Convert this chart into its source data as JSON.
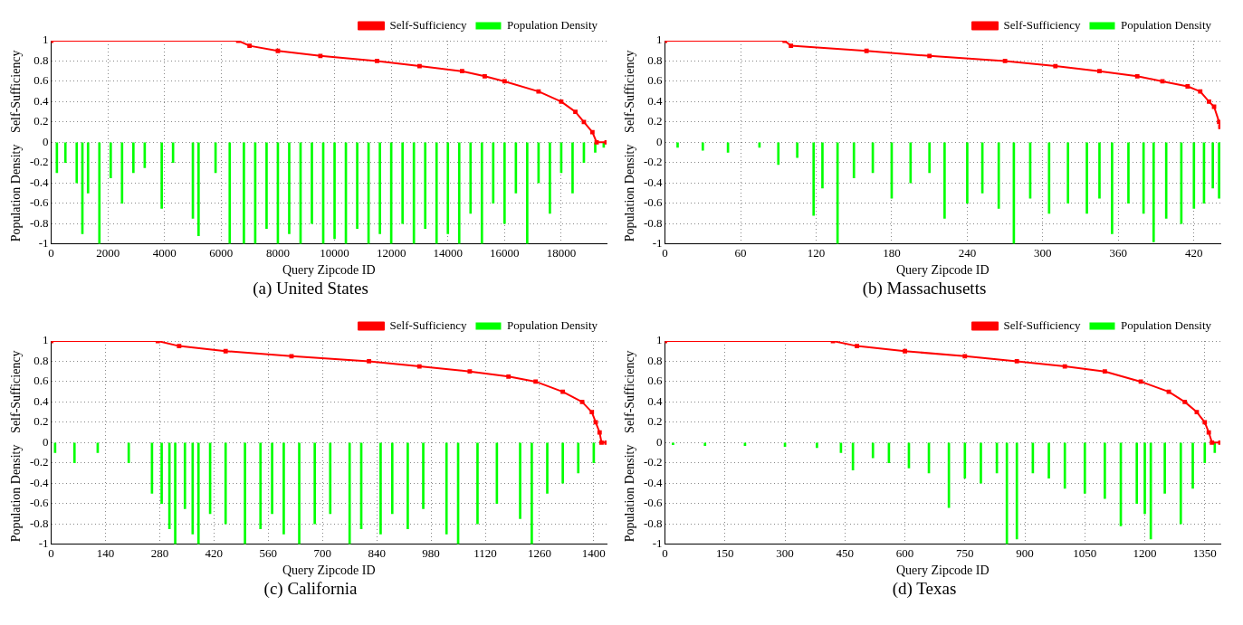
{
  "chart_data": [
    {
      "type": "line",
      "title": "(a) United States",
      "xlabel": "Query Zipcode ID",
      "ylabel": "Self-Sufficiency",
      "annotations": [
        "Population Density"
      ],
      "xlim": [
        0,
        19600
      ],
      "xticks": [
        0,
        2000,
        4000,
        6000,
        8000,
        10000,
        12000,
        14000,
        16000,
        18000
      ],
      "ylim": [
        -1,
        1
      ],
      "yticks": [
        -1,
        -0.8,
        -0.6,
        -0.4,
        -0.2,
        0,
        0.2,
        0.4,
        0.6,
        0.8,
        1
      ],
      "grid": true,
      "legend": "top right",
      "series": [
        {
          "name": "Self-Sufficiency",
          "color": "#ff0000",
          "marker": "square",
          "x": [
            0,
            6600,
            7000,
            8000,
            9500,
            11500,
            13000,
            14500,
            15300,
            16000,
            17200,
            18000,
            18500,
            18800,
            19100,
            19250,
            19600
          ],
          "values": [
            1,
            1,
            0.95,
            0.9,
            0.85,
            0.8,
            0.75,
            0.7,
            0.65,
            0.6,
            0.5,
            0.4,
            0.3,
            0.2,
            0.1,
            0,
            0
          ]
        },
        {
          "name": "Population Density",
          "type": "bar",
          "color": "#00ff00",
          "x": [
            200,
            500,
            900,
            1100,
            1300,
            1700,
            2100,
            2500,
            2900,
            3300,
            3900,
            4300,
            5000,
            5200,
            5800,
            6300,
            6800,
            7200,
            7600,
            8000,
            8400,
            8800,
            9200,
            9600,
            10000,
            10400,
            10800,
            11200,
            11600,
            12000,
            12400,
            12800,
            13200,
            13600,
            14000,
            14400,
            14800,
            15200,
            15600,
            16000,
            16400,
            16800,
            17200,
            17600,
            18000,
            18400,
            18800,
            19200,
            19500
          ],
          "values": [
            -0.3,
            -0.2,
            -0.4,
            -0.9,
            -0.5,
            -1,
            -0.35,
            -0.6,
            -0.3,
            -0.25,
            -0.65,
            -0.2,
            -0.75,
            -0.92,
            -0.3,
            -1,
            -1,
            -1,
            -0.85,
            -1,
            -0.9,
            -1,
            -0.8,
            -1,
            -0.95,
            -1,
            -0.85,
            -1,
            -0.9,
            -1,
            -0.8,
            -1,
            -0.85,
            -1,
            -0.9,
            -1,
            -0.7,
            -1,
            -0.6,
            -0.8,
            -0.5,
            -1,
            -0.4,
            -0.7,
            -0.3,
            -0.5,
            -0.2,
            -0.1,
            -0.05
          ]
        }
      ]
    },
    {
      "type": "line",
      "title": "(b) Massachusetts",
      "xlabel": "Query Zipcode ID",
      "ylabel": "Self-Sufficiency",
      "annotations": [
        "Population Density"
      ],
      "xlim": [
        0,
        441
      ],
      "xticks": [
        0,
        60,
        120,
        180,
        240,
        300,
        360,
        420
      ],
      "ylim": [
        -1,
        1
      ],
      "yticks": [
        -1,
        -0.8,
        -0.6,
        -0.4,
        -0.2,
        0,
        0.2,
        0.4,
        0.6,
        0.8,
        1
      ],
      "grid": true,
      "legend": "top right",
      "series": [
        {
          "name": "Self-Sufficiency",
          "color": "#ff0000",
          "marker": "square",
          "x": [
            0,
            95,
            100,
            160,
            210,
            270,
            310,
            345,
            375,
            395,
            415,
            425,
            432,
            436,
            440,
            441
          ],
          "values": [
            1,
            1,
            0.95,
            0.9,
            0.85,
            0.8,
            0.75,
            0.7,
            0.65,
            0.6,
            0.55,
            0.5,
            0.4,
            0.35,
            0.2,
            0.15
          ]
        },
        {
          "name": "Population Density",
          "type": "bar",
          "color": "#00ff00",
          "x": [
            10,
            30,
            50,
            75,
            90,
            105,
            118,
            125,
            137,
            150,
            165,
            180,
            195,
            210,
            222,
            240,
            252,
            265,
            277,
            290,
            305,
            320,
            335,
            345,
            355,
            368,
            380,
            388,
            398,
            410,
            420,
            428,
            435,
            440
          ],
          "values": [
            -0.05,
            -0.08,
            -0.1,
            -0.05,
            -0.22,
            -0.15,
            -0.72,
            -0.45,
            -1,
            -0.35,
            -0.3,
            -0.55,
            -0.4,
            -0.3,
            -0.75,
            -0.6,
            -0.5,
            -0.65,
            -1,
            -0.55,
            -0.7,
            -0.6,
            -0.7,
            -0.55,
            -0.9,
            -0.6,
            -0.7,
            -0.98,
            -0.75,
            -0.8,
            -0.65,
            -0.6,
            -0.45,
            -0.55
          ]
        }
      ]
    },
    {
      "type": "line",
      "title": "(c) California",
      "xlabel": "Query Zipcode ID",
      "ylabel": "Self-Sufficiency",
      "annotations": [
        "Population Density"
      ],
      "xlim": [
        0,
        1433
      ],
      "xticks": [
        0,
        140,
        280,
        420,
        560,
        700,
        840,
        980,
        1120,
        1260,
        1400
      ],
      "ylim": [
        -1,
        1
      ],
      "yticks": [
        -1,
        -0.8,
        -0.6,
        -0.4,
        -0.2,
        0,
        0.2,
        0.4,
        0.6,
        0.8,
        1
      ],
      "grid": true,
      "legend": "top right",
      "series": [
        {
          "name": "Self-Sufficiency",
          "color": "#ff0000",
          "marker": "square",
          "x": [
            0,
            275,
            330,
            450,
            620,
            820,
            950,
            1080,
            1180,
            1250,
            1320,
            1370,
            1395,
            1405,
            1415,
            1420,
            1433
          ],
          "values": [
            1,
            1,
            0.95,
            0.9,
            0.85,
            0.8,
            0.75,
            0.7,
            0.65,
            0.6,
            0.5,
            0.4,
            0.3,
            0.2,
            0.1,
            0,
            0
          ]
        },
        {
          "name": "Population Density",
          "type": "bar",
          "color": "#00ff00",
          "x": [
            10,
            60,
            120,
            200,
            260,
            285,
            305,
            320,
            345,
            365,
            380,
            410,
            450,
            500,
            540,
            570,
            600,
            640,
            680,
            720,
            770,
            800,
            850,
            880,
            920,
            960,
            1020,
            1050,
            1100,
            1150,
            1210,
            1240,
            1280,
            1320,
            1360,
            1400
          ],
          "values": [
            -0.1,
            -0.2,
            -0.1,
            -0.2,
            -0.5,
            -0.6,
            -0.85,
            -1,
            -0.65,
            -0.9,
            -1,
            -0.7,
            -0.8,
            -1,
            -0.85,
            -0.7,
            -0.9,
            -1,
            -0.8,
            -0.7,
            -1,
            -0.85,
            -0.9,
            -0.7,
            -0.85,
            -0.65,
            -0.9,
            -1,
            -0.8,
            -0.6,
            -0.75,
            -1,
            -0.5,
            -0.4,
            -0.3,
            -0.2
          ]
        }
      ]
    },
    {
      "type": "line",
      "title": "(d) Texas",
      "xlabel": "Query Zipcode ID",
      "ylabel": "Self-Sufficiency",
      "annotations": [
        "Population Density"
      ],
      "xlim": [
        0,
        1389
      ],
      "xticks": [
        0,
        150,
        300,
        450,
        600,
        750,
        900,
        1050,
        1200,
        1350
      ],
      "ylim": [
        -1,
        1
      ],
      "yticks": [
        -1,
        -0.8,
        -0.6,
        -0.4,
        -0.2,
        0,
        0.2,
        0.4,
        0.6,
        0.8,
        1
      ],
      "grid": true,
      "legend": "top right",
      "series": [
        {
          "name": "Self-Sufficiency",
          "color": "#ff0000",
          "marker": "square",
          "x": [
            0,
            420,
            480,
            600,
            750,
            880,
            1000,
            1100,
            1190,
            1260,
            1300,
            1330,
            1350,
            1360,
            1368,
            1389
          ],
          "values": [
            1,
            1,
            0.95,
            0.9,
            0.85,
            0.8,
            0.75,
            0.7,
            0.6,
            0.5,
            0.4,
            0.3,
            0.2,
            0.1,
            0,
            0
          ]
        },
        {
          "name": "Population Density",
          "type": "bar",
          "color": "#00ff00",
          "x": [
            20,
            100,
            200,
            300,
            380,
            440,
            470,
            520,
            560,
            610,
            660,
            710,
            750,
            790,
            830,
            855,
            880,
            920,
            960,
            1000,
            1050,
            1100,
            1140,
            1180,
            1200,
            1215,
            1250,
            1290,
            1320,
            1350,
            1375
          ],
          "values": [
            -0.02,
            -0.03,
            -0.03,
            -0.04,
            -0.05,
            -0.1,
            -0.27,
            -0.15,
            -0.2,
            -0.25,
            -0.3,
            -0.64,
            -0.35,
            -0.4,
            -0.3,
            -1,
            -0.95,
            -0.3,
            -0.35,
            -0.45,
            -0.5,
            -0.55,
            -0.82,
            -0.6,
            -0.7,
            -0.95,
            -0.5,
            -0.8,
            -0.45,
            -0.2,
            -0.1
          ]
        }
      ]
    }
  ]
}
